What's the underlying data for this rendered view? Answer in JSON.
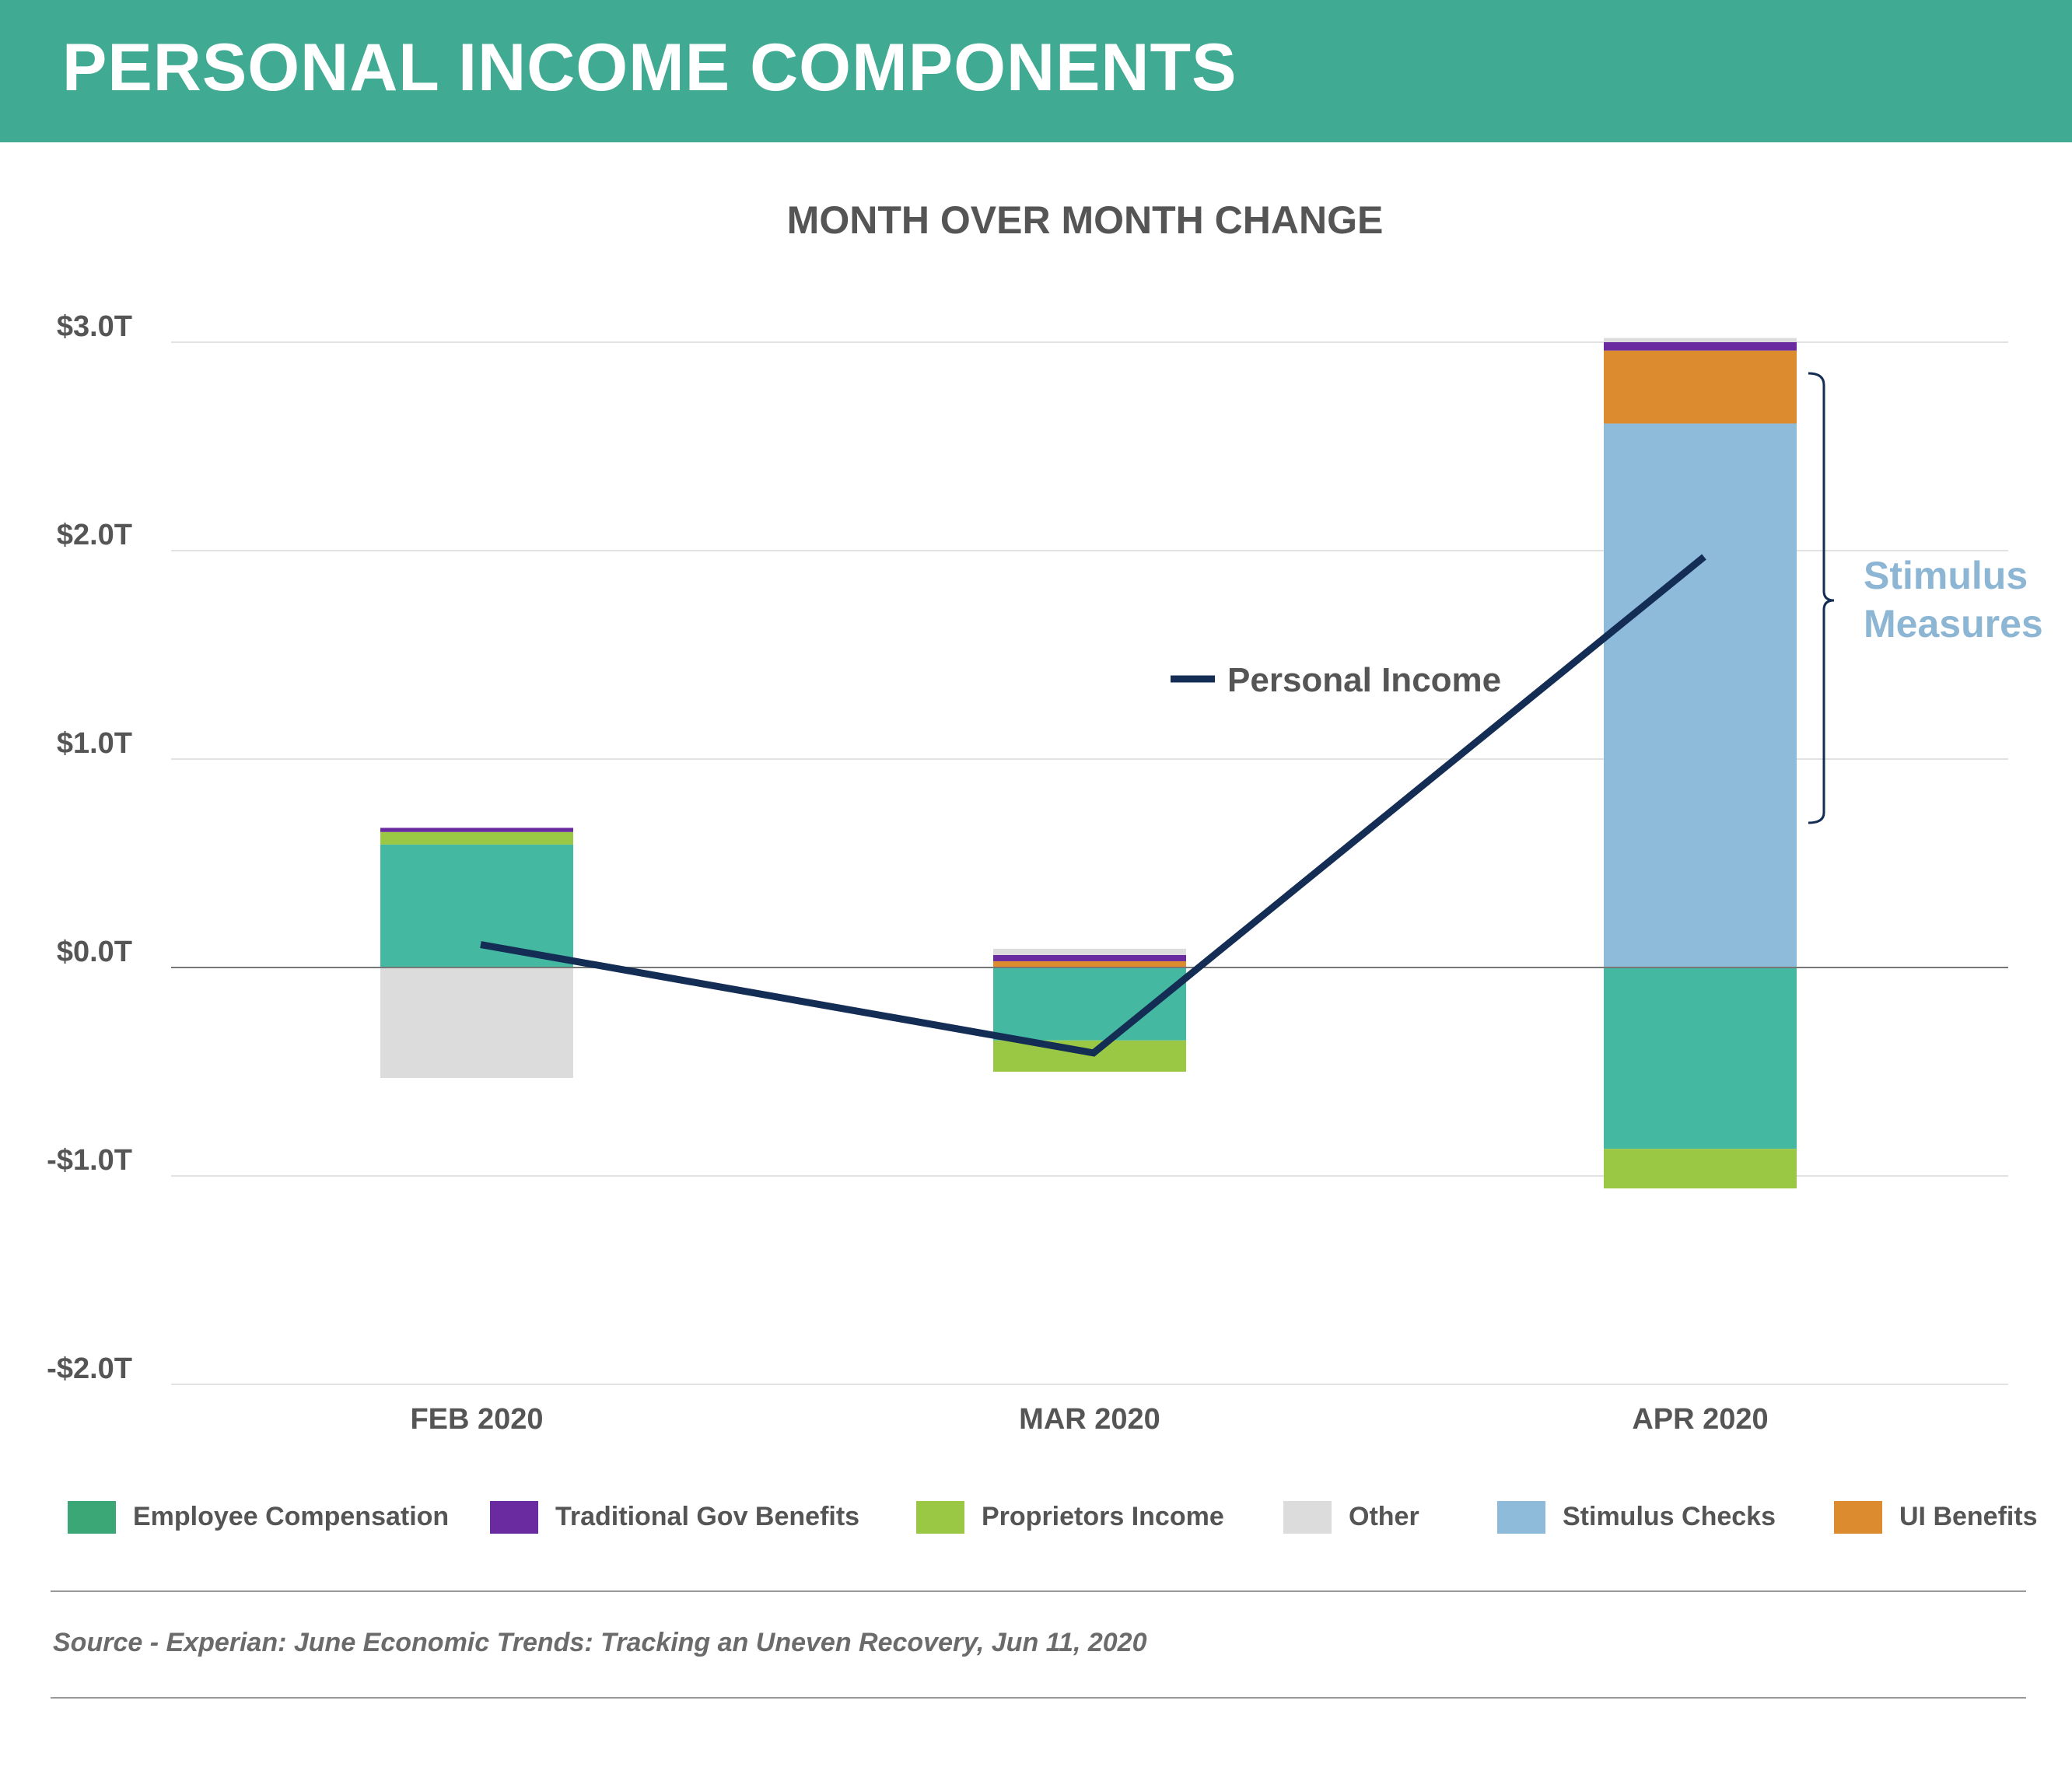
{
  "header": {
    "title": "PERSONAL INCOME COMPONENTS"
  },
  "source": "Source - Experian: June Economic Trends: Tracking an Uneven Recovery, Jun 11, 2020",
  "chart_data": {
    "type": "bar",
    "stacked": true,
    "title": "MONTH OVER MONTH CHANGE",
    "xlabel": "",
    "ylabel": "",
    "ylim": [
      -2.0,
      3.0
    ],
    "yticks": [
      {
        "v": 3,
        "label": "$3.0T"
      },
      {
        "v": 2,
        "label": "$2.0T"
      },
      {
        "v": 1,
        "label": "$1.0T"
      },
      {
        "v": 0,
        "label": "$0.0T"
      },
      {
        "v": -1,
        "label": "-$1.0T"
      },
      {
        "v": -2,
        "label": "-$2.0T"
      }
    ],
    "grid": true,
    "categories": [
      "FEB 2020",
      "MAR 2020",
      "APR 2020"
    ],
    "series": [
      {
        "name": "Employee Compensation",
        "color": "#45B8A1",
        "legend_color": "#3BA776",
        "values": [
          0.59,
          -0.35,
          -0.87
        ]
      },
      {
        "name": "Traditional Gov Benefits",
        "color": "#6A2BA1",
        "values": [
          0.02,
          0.03,
          0.04
        ]
      },
      {
        "name": "Proprietors Income",
        "color": "#9AC744",
        "values": [
          0.06,
          -0.15,
          -0.19
        ]
      },
      {
        "name": "Other",
        "color": "#DCDCDC",
        "values": [
          -0.53,
          0.03,
          0.02
        ]
      },
      {
        "name": "Stimulus Checks",
        "color": "#8DBBD9",
        "values": [
          0,
          0,
          2.61
        ]
      },
      {
        "name": "UI Benefits",
        "color": "#DC8C2E",
        "values": [
          0,
          0.03,
          0.35
        ]
      }
    ],
    "line": {
      "name": "Personal Income",
      "color": "#142D54",
      "values": [
        0.11,
        -0.41,
        1.97
      ]
    },
    "annotation": {
      "text_lines": [
        "Stimulus",
        "Measures"
      ],
      "color": "#8DB6D4"
    },
    "legend_position": "bottom"
  }
}
